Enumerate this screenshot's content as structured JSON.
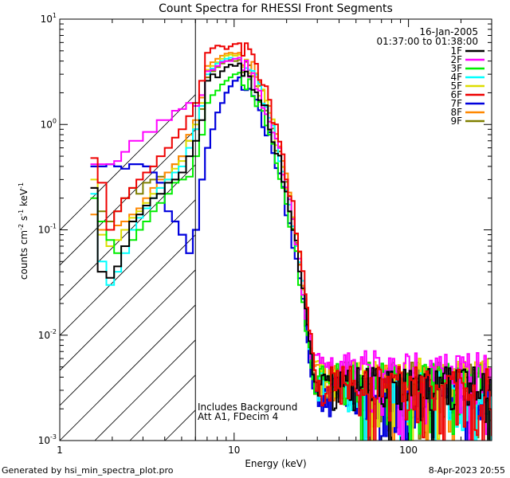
{
  "chart_data": {
    "type": "line",
    "title": "Count Spectra for RHESSI Front Segments",
    "xlabel": "Energy (keV)",
    "ylabel_parts": [
      "counts cm",
      "-2",
      " s",
      "-1",
      " keV",
      "-1"
    ],
    "xscale": "log",
    "yscale": "log",
    "xlim": [
      1,
      300
    ],
    "ylim": [
      0.001,
      10
    ],
    "x_ticks": [
      {
        "value": 1,
        "label": "1"
      },
      {
        "value": 10,
        "label": "10"
      },
      {
        "value": 100,
        "label": "100"
      }
    ],
    "y_ticks": [
      {
        "value": 0.001,
        "base": "10",
        "exp": "-3"
      },
      {
        "value": 0.01,
        "base": "10",
        "exp": "-2"
      },
      {
        "value": 0.1,
        "base": "10",
        "exp": "-1"
      },
      {
        "value": 1,
        "base": "10",
        "exp": "0"
      },
      {
        "value": 10,
        "base": "10",
        "exp": "1"
      }
    ],
    "threshold_energy": 6,
    "date": "16-Jan-2005",
    "time_range": "01:37:00 to 01:38:00",
    "annotations": [
      "Includes Background",
      "Att A1, FDecim 4"
    ],
    "series": [
      {
        "name": "1F",
        "color": "#000000",
        "low": [
          [
            1.5,
            0.25
          ],
          [
            1.65,
            0.04
          ],
          [
            1.85,
            0.035
          ],
          [
            2.05,
            0.045
          ],
          [
            2.25,
            0.07
          ],
          [
            2.5,
            0.12
          ],
          [
            2.75,
            0.14
          ],
          [
            3.0,
            0.17
          ],
          [
            3.3,
            0.2
          ],
          [
            3.6,
            0.22
          ],
          [
            4.0,
            0.28
          ],
          [
            4.4,
            0.3
          ],
          [
            4.8,
            0.35
          ],
          [
            5.3,
            0.5
          ],
          [
            5.8,
            0.7
          ],
          [
            6.3,
            1.1
          ],
          [
            6.8,
            2.6
          ],
          [
            7.3,
            3.0
          ],
          [
            7.8,
            2.8
          ],
          [
            8.3,
            3.2
          ],
          [
            8.8,
            3.5
          ],
          [
            9.3,
            3.7
          ],
          [
            9.8,
            3.6
          ]
        ],
        "peak": 3.8,
        "tail_scale": 1.0
      },
      {
        "name": "2F",
        "color": "#ff00ff",
        "low": [
          [
            1.5,
            0.42
          ],
          [
            1.65,
            0.42
          ],
          [
            1.85,
            0.42
          ],
          [
            2.05,
            0.45
          ],
          [
            2.25,
            0.55
          ],
          [
            2.5,
            0.7
          ],
          [
            2.75,
            0.7
          ],
          [
            3.0,
            0.85
          ],
          [
            3.3,
            0.85
          ],
          [
            3.6,
            1.1
          ],
          [
            4.0,
            1.1
          ],
          [
            4.4,
            1.35
          ],
          [
            4.8,
            1.4
          ],
          [
            5.3,
            1.6
          ],
          [
            5.8,
            1.5
          ],
          [
            6.3,
            1.9
          ],
          [
            6.8,
            3.2
          ],
          [
            7.3,
            3.3
          ],
          [
            7.8,
            3.6
          ],
          [
            8.3,
            3.9
          ],
          [
            8.8,
            4.0
          ],
          [
            9.3,
            4.0
          ],
          [
            9.8,
            4.2
          ]
        ],
        "peak": 4.3,
        "tail_scale": 1.4
      },
      {
        "name": "3F",
        "color": "#00ee00",
        "low": [
          [
            1.5,
            0.2
          ],
          [
            1.65,
            0.12
          ],
          [
            1.85,
            0.08
          ],
          [
            2.05,
            0.06
          ],
          [
            2.25,
            0.07
          ],
          [
            2.5,
            0.08
          ],
          [
            2.75,
            0.1
          ],
          [
            3.0,
            0.12
          ],
          [
            3.3,
            0.15
          ],
          [
            3.6,
            0.18
          ],
          [
            4.0,
            0.22
          ],
          [
            4.4,
            0.28
          ],
          [
            4.8,
            0.3
          ],
          [
            5.3,
            0.32
          ],
          [
            5.8,
            0.5
          ],
          [
            6.3,
            0.8
          ],
          [
            6.8,
            1.6
          ],
          [
            7.3,
            1.9
          ],
          [
            7.8,
            2.1
          ],
          [
            8.3,
            2.4
          ],
          [
            8.8,
            2.6
          ],
          [
            9.3,
            2.8
          ],
          [
            9.8,
            3.0
          ]
        ],
        "peak": 3.1,
        "tail_scale": 1.1
      },
      {
        "name": "4F",
        "color": "#00ffff",
        "low": [
          [
            1.5,
            0.22
          ],
          [
            1.65,
            0.05
          ],
          [
            1.85,
            0.03
          ],
          [
            2.05,
            0.04
          ],
          [
            2.25,
            0.06
          ],
          [
            2.5,
            0.1
          ],
          [
            2.75,
            0.13
          ],
          [
            3.0,
            0.16
          ],
          [
            3.3,
            0.2
          ],
          [
            3.6,
            0.25
          ],
          [
            4.0,
            0.3
          ],
          [
            4.4,
            0.35
          ],
          [
            4.8,
            0.4
          ],
          [
            5.3,
            0.6
          ],
          [
            5.8,
            0.9
          ],
          [
            6.3,
            1.5
          ],
          [
            6.8,
            3.0
          ],
          [
            7.3,
            3.4
          ],
          [
            7.8,
            3.8
          ],
          [
            8.3,
            4.0
          ],
          [
            8.8,
            4.2
          ],
          [
            9.3,
            4.3
          ],
          [
            9.8,
            4.2
          ]
        ],
        "peak": 4.3,
        "tail_scale": 0.9
      },
      {
        "name": "5F",
        "color": "#dddd00",
        "low": [
          [
            1.5,
            0.3
          ],
          [
            1.65,
            0.09
          ],
          [
            1.85,
            0.07
          ],
          [
            2.05,
            0.08
          ],
          [
            2.25,
            0.1
          ],
          [
            2.5,
            0.13
          ],
          [
            2.75,
            0.15
          ],
          [
            3.0,
            0.18
          ],
          [
            3.3,
            0.22
          ],
          [
            3.6,
            0.25
          ],
          [
            4.0,
            0.3
          ],
          [
            4.4,
            0.38
          ],
          [
            4.8,
            0.45
          ],
          [
            5.3,
            0.7
          ],
          [
            5.8,
            1.0
          ],
          [
            6.3,
            1.6
          ],
          [
            6.8,
            3.3
          ],
          [
            7.3,
            3.6
          ],
          [
            7.8,
            3.9
          ],
          [
            8.3,
            4.2
          ],
          [
            8.8,
            4.5
          ],
          [
            9.3,
            4.6
          ],
          [
            9.8,
            4.5
          ]
        ],
        "peak": 4.6,
        "tail_scale": 1.2
      },
      {
        "name": "6F",
        "color": "#ee0000",
        "low": [
          [
            1.5,
            0.48
          ],
          [
            1.65,
            0.28
          ],
          [
            1.85,
            0.1
          ],
          [
            2.05,
            0.15
          ],
          [
            2.25,
            0.2
          ],
          [
            2.5,
            0.25
          ],
          [
            2.75,
            0.3
          ],
          [
            3.0,
            0.35
          ],
          [
            3.3,
            0.4
          ],
          [
            3.6,
            0.5
          ],
          [
            4.0,
            0.6
          ],
          [
            4.4,
            0.75
          ],
          [
            4.8,
            0.9
          ],
          [
            5.3,
            1.2
          ],
          [
            5.8,
            1.6
          ],
          [
            6.3,
            2.6
          ],
          [
            6.8,
            4.8
          ],
          [
            7.3,
            5.3
          ],
          [
            7.8,
            5.6
          ],
          [
            8.3,
            5.5
          ],
          [
            8.8,
            5.2
          ],
          [
            9.3,
            5.5
          ],
          [
            9.8,
            5.8
          ]
        ],
        "peak": 5.9,
        "tail_scale": 1.0
      },
      {
        "name": "7F",
        "color": "#0000dd",
        "low": [
          [
            1.5,
            0.4
          ],
          [
            1.65,
            0.4
          ],
          [
            1.85,
            0.42
          ],
          [
            2.05,
            0.4
          ],
          [
            2.25,
            0.38
          ],
          [
            2.5,
            0.42
          ],
          [
            2.75,
            0.42
          ],
          [
            3.0,
            0.4
          ],
          [
            3.3,
            0.35
          ],
          [
            3.6,
            0.28
          ],
          [
            4.0,
            0.15
          ],
          [
            4.4,
            0.12
          ],
          [
            4.8,
            0.09
          ],
          [
            5.3,
            0.06
          ],
          [
            5.8,
            0.1
          ],
          [
            6.3,
            0.3
          ],
          [
            6.8,
            0.6
          ],
          [
            7.3,
            0.9
          ],
          [
            7.8,
            1.3
          ],
          [
            8.3,
            1.6
          ],
          [
            8.8,
            2.0
          ],
          [
            9.3,
            2.3
          ],
          [
            9.8,
            2.6
          ]
        ],
        "peak": 2.8,
        "tail_scale": 0.8
      },
      {
        "name": "8F",
        "color": "#ff8800",
        "low": [
          [
            1.5,
            0.14
          ],
          [
            1.65,
            0.1
          ],
          [
            1.85,
            0.1
          ],
          [
            2.05,
            0.11
          ],
          [
            2.25,
            0.12
          ],
          [
            2.5,
            0.14
          ],
          [
            2.75,
            0.16
          ],
          [
            3.0,
            0.2
          ],
          [
            3.3,
            0.25
          ],
          [
            3.6,
            0.3
          ],
          [
            4.0,
            0.35
          ],
          [
            4.4,
            0.42
          ],
          [
            4.8,
            0.5
          ],
          [
            5.3,
            0.8
          ],
          [
            5.8,
            1.1
          ],
          [
            6.3,
            1.8
          ],
          [
            6.8,
            3.6
          ],
          [
            7.3,
            3.9
          ],
          [
            7.8,
            4.2
          ],
          [
            8.3,
            4.5
          ],
          [
            8.8,
            4.7
          ],
          [
            9.3,
            4.8
          ],
          [
            9.8,
            4.7
          ]
        ],
        "peak": 4.8,
        "tail_scale": 1.1
      },
      {
        "name": "9F",
        "color": "#808000",
        "low": [
          [
            1.5,
            0.25
          ],
          [
            1.65,
            0.15
          ],
          [
            1.85,
            0.12
          ],
          [
            2.05,
            0.15
          ],
          [
            2.25,
            0.2
          ],
          [
            2.5,
            0.25
          ],
          [
            2.75,
            0.22
          ],
          [
            3.0,
            0.28
          ],
          [
            3.3,
            0.3
          ],
          [
            3.6,
            0.32
          ],
          [
            4.0,
            0.35
          ],
          [
            4.4,
            0.42
          ],
          [
            4.8,
            0.5
          ],
          [
            5.3,
            0.7
          ],
          [
            5.8,
            0.9
          ],
          [
            6.3,
            1.4
          ],
          [
            6.8,
            2.8
          ],
          [
            7.3,
            3.2
          ],
          [
            7.8,
            3.5
          ],
          [
            8.3,
            3.8
          ],
          [
            8.8,
            4.0
          ],
          [
            9.3,
            4.1
          ],
          [
            9.8,
            4.0
          ]
        ],
        "peak": 4.1,
        "tail_scale": 1.1
      }
    ]
  },
  "footer": {
    "generated_by": "Generated by hsi_min_spectra_plot.pro",
    "timestamp": "8-Apr-2023 20:55"
  }
}
